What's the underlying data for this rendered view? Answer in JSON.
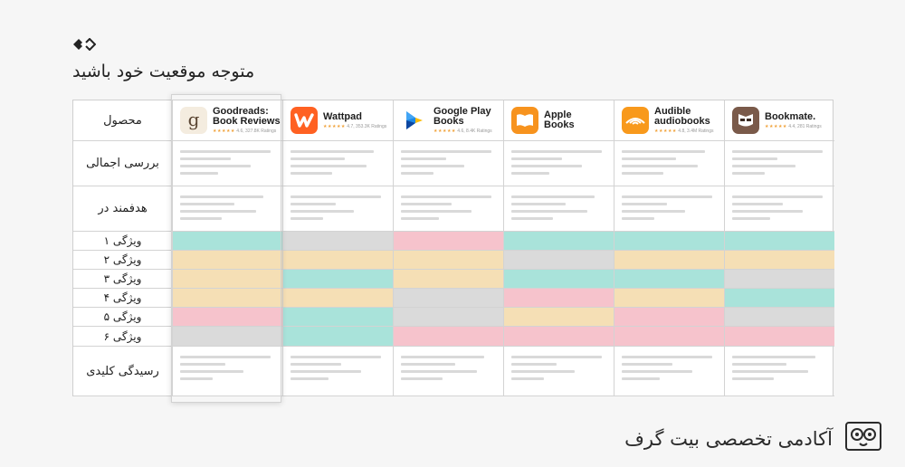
{
  "page": {
    "title": "متوجه موقعیت خود باشید"
  },
  "table": {
    "row_labels": {
      "product": "محصول",
      "overview": "بررسی اجمالی",
      "target": "هدفمند در",
      "features": [
        "ویژگی ۱",
        "ویژگی ۲",
        "ویژگی ۳",
        "ویژگی ۴",
        "ویژگی ۵",
        "ویژگی ۶"
      ],
      "takeaways": "رسیدگی کلیدی"
    },
    "products": [
      {
        "name_line1": "Goodreads:",
        "name_line2": "Book Reviews",
        "stars": "★★★★★",
        "rating": "4.6, 327.8K Ratings",
        "icon": "goodreads-icon",
        "icon_bg": "#f4ecdf"
      },
      {
        "name_line1": "Wattpad",
        "name_line2": "",
        "stars": "★★★★★",
        "rating": "4.7, 353.3K Ratings",
        "icon": "wattpad-icon",
        "icon_bg": "#ff6122"
      },
      {
        "name_line1": "Google Play",
        "name_line2": "Books",
        "stars": "★★★★★",
        "rating": "4.6, 8.4K Ratings",
        "icon": "google-play-books-icon",
        "icon_bg": "#ffffff"
      },
      {
        "name_line1": "Apple",
        "name_line2": "Books",
        "stars": "",
        "rating": "",
        "icon": "apple-books-icon",
        "icon_bg": "#f7931e"
      },
      {
        "name_line1": "Audible",
        "name_line2": "audiobooks",
        "stars": "★★★★★",
        "rating": "4.8, 3.4M Ratings",
        "icon": "audible-icon",
        "icon_bg": "#f8991c"
      },
      {
        "name_line1": "Bookmate.",
        "name_line2": "",
        "stars": "★★★★★",
        "rating": "4.4, 281 Ratings",
        "icon": "bookmate-icon",
        "icon_bg": "#7a5a4a"
      }
    ],
    "feature_status": [
      [
        "teal",
        "gray",
        "pink",
        "teal",
        "teal",
        "teal"
      ],
      [
        "sand",
        "sand",
        "sand",
        "gray",
        "sand",
        "sand"
      ],
      [
        "sand",
        "teal",
        "sand",
        "teal",
        "teal",
        "gray"
      ],
      [
        "sand",
        "sand",
        "gray",
        "pink",
        "sand",
        "teal"
      ],
      [
        "pink",
        "teal",
        "gray",
        "sand",
        "pink",
        "gray"
      ],
      [
        "gray",
        "teal",
        "pink",
        "pink",
        "pink",
        "pink"
      ]
    ],
    "status_colors": {
      "teal": "#a9e3da",
      "gray": "#dadada",
      "pink": "#f6c3cc",
      "sand": "#f5dfb5"
    }
  },
  "footer": {
    "brand": "آکادمی تخصصی بیت گرف"
  }
}
